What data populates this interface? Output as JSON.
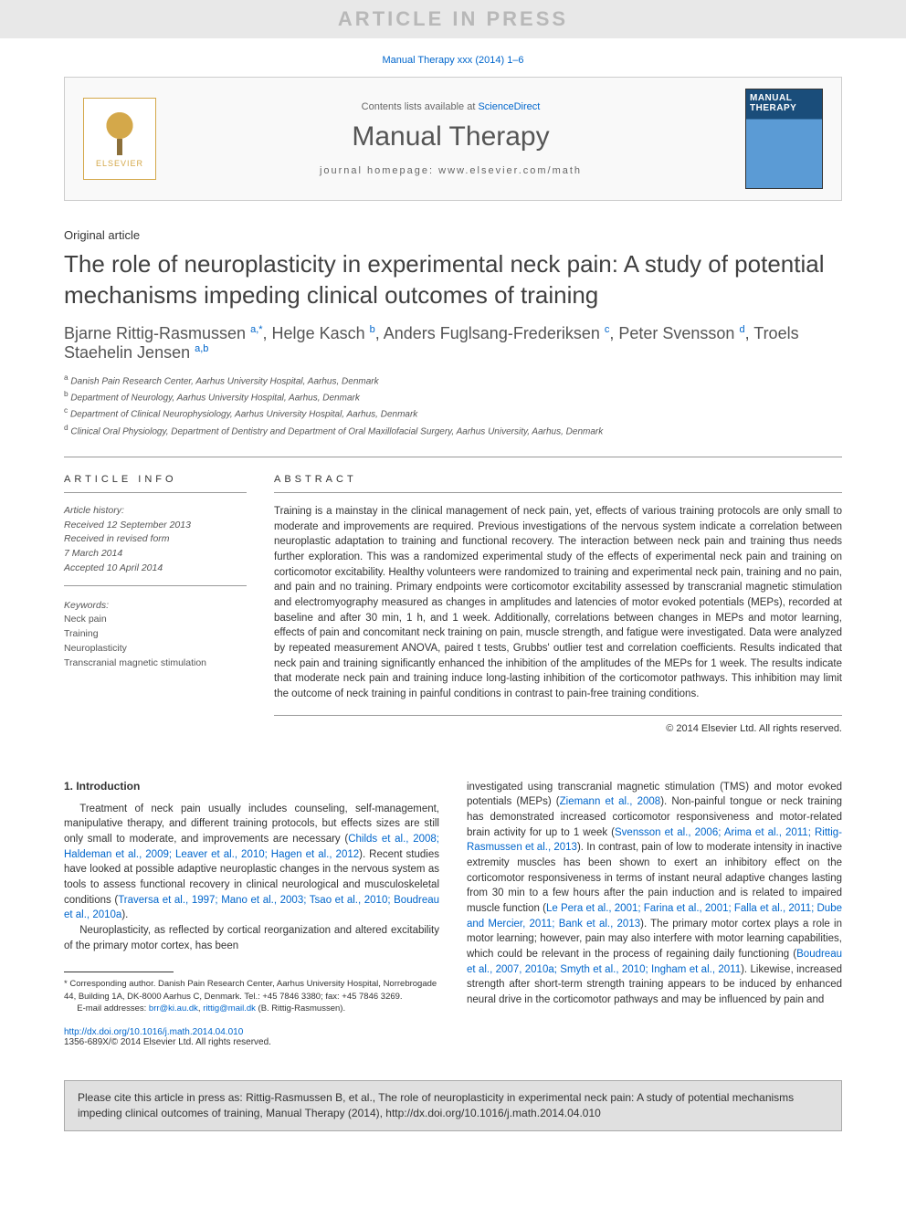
{
  "banner": "ARTICLE IN PRESS",
  "citation_header": "Manual Therapy xxx (2014) 1–6",
  "header": {
    "contents_text": "Contents lists available at ",
    "contents_link": "ScienceDirect",
    "journal_name": "Manual Therapy",
    "homepage_label": "journal homepage: ",
    "homepage_url": "www.elsevier.com/math",
    "elsevier_label": "ELSEVIER",
    "cover_title": "MANUAL THERAPY"
  },
  "article": {
    "type": "Original article",
    "title": "The role of neuroplasticity in experimental neck pain: A study of potential mechanisms impeding clinical outcomes of training",
    "authors_html": "Bjarne Rittig-Rasmussen <sup>a,</sup><sup class='sup-star'>*</sup>, Helge Kasch <sup>b</sup>, Anders Fuglsang-Frederiksen <sup>c</sup>, Peter Svensson <sup>d</sup>, Troels Staehelin Jensen <sup>a,b</sup>",
    "affiliations": [
      {
        "sup": "a",
        "text": "Danish Pain Research Center, Aarhus University Hospital, Aarhus, Denmark"
      },
      {
        "sup": "b",
        "text": "Department of Neurology, Aarhus University Hospital, Aarhus, Denmark"
      },
      {
        "sup": "c",
        "text": "Department of Clinical Neurophysiology, Aarhus University Hospital, Aarhus, Denmark"
      },
      {
        "sup": "d",
        "text": "Clinical Oral Physiology, Department of Dentistry and Department of Oral Maxillofacial Surgery, Aarhus University, Aarhus, Denmark"
      }
    ]
  },
  "info": {
    "heading": "ARTICLE INFO",
    "history_label": "Article history:",
    "history": [
      "Received 12 September 2013",
      "Received in revised form",
      "7 March 2014",
      "Accepted 10 April 2014"
    ],
    "keywords_label": "Keywords:",
    "keywords": [
      "Neck pain",
      "Training",
      "Neuroplasticity",
      "Transcranial magnetic stimulation"
    ]
  },
  "abstract": {
    "heading": "ABSTRACT",
    "text": "Training is a mainstay in the clinical management of neck pain, yet, effects of various training protocols are only small to moderate and improvements are required. Previous investigations of the nervous system indicate a correlation between neuroplastic adaptation to training and functional recovery. The interaction between neck pain and training thus needs further exploration. This was a randomized experimental study of the effects of experimental neck pain and training on corticomotor excitability. Healthy volunteers were randomized to training and experimental neck pain, training and no pain, and pain and no training. Primary endpoints were corticomotor excitability assessed by transcranial magnetic stimulation and electromyography measured as changes in amplitudes and latencies of motor evoked potentials (MEPs), recorded at baseline and after 30 min, 1 h, and 1 week. Additionally, correlations between changes in MEPs and motor learning, effects of pain and concomitant neck training on pain, muscle strength, and fatigue were investigated. Data were analyzed by repeated measurement ANOVA, paired t tests, Grubbs' outlier test and correlation coefficients. Results indicated that neck pain and training significantly enhanced the inhibition of the amplitudes of the MEPs for 1 week. The results indicate that moderate neck pain and training induce long-lasting inhibition of the corticomotor pathways. This inhibition may limit the outcome of neck training in painful conditions in contrast to pain-free training conditions.",
    "copyright": "© 2014 Elsevier Ltd. All rights reserved."
  },
  "body": {
    "section_heading": "1. Introduction",
    "para1_pre": "Treatment of neck pain usually includes counseling, self-management, manipulative therapy, and different training protocols, but effects sizes are still only small to moderate, and improvements are necessary (",
    "para1_ref1": "Childs et al., 2008; Haldeman et al., 2009; Leaver et al., 2010; Hagen et al., 2012",
    "para1_mid": "). Recent studies have looked at possible adaptive neuroplastic changes in the nervous system as tools to assess functional recovery in clinical neurological and musculoskeletal conditions (",
    "para1_ref2": "Traversa et al., 1997; Mano et al., 2003; Tsao et al., 2010; Boudreau et al., 2010a",
    "para1_end": ").",
    "para2": "Neuroplasticity, as reflected by cortical reorganization and altered excitability of the primary motor cortex, has been",
    "col2_pre": "investigated using transcranial magnetic stimulation (TMS) and motor evoked potentials (MEPs) (",
    "col2_ref1": "Ziemann et al., 2008",
    "col2_mid1": "). Non-painful tongue or neck training has demonstrated increased corticomotor responsiveness and motor-related brain activity for up to 1 week (",
    "col2_ref2": "Svensson et al., 2006; Arima et al., 2011; Rittig-Rasmussen et al., 2013",
    "col2_mid2": "). In contrast, pain of low to moderate intensity in inactive extremity muscles has been shown to exert an inhibitory effect on the corticomotor responsiveness in terms of instant neural adaptive changes lasting from 30 min to a few hours after the pain induction and is related to impaired muscle function (",
    "col2_ref3": "Le Pera et al., 2001; Farina et al., 2001; Falla et al., 2011; Dube and Mercier, 2011; Bank et al., 2013",
    "col2_mid3": "). The primary motor cortex plays a role in motor learning; however, pain may also interfere with motor learning capabilities, which could be relevant in the process of regaining daily functioning (",
    "col2_ref4": "Boudreau et al., 2007, 2010a; Smyth et al., 2010; Ingham et al., 2011",
    "col2_end": "). Likewise, increased strength after short-term strength training appears to be induced by enhanced neural drive in the corticomotor pathways and may be influenced by pain and"
  },
  "footnote": {
    "corresponding": "* Corresponding author. Danish Pain Research Center, Aarhus University Hospital, Norrebrogade 44, Building 1A, DK-8000 Aarhus C, Denmark. Tel.: +45 7846 3380; fax: +45 7846 3269.",
    "email_label": "E-mail addresses: ",
    "email1": "brr@ki.au.dk",
    "email_sep": ", ",
    "email2": "rittig@mail.dk",
    "email_suffix": " (B. Rittig-Rasmussen).",
    "doi": "http://dx.doi.org/10.1016/j.math.2014.04.010",
    "issn": "1356-689X/© 2014 Elsevier Ltd. All rights reserved."
  },
  "cite_box": "Please cite this article in press as: Rittig-Rasmussen B, et al., The role of neuroplasticity in experimental neck pain: A study of potential mechanisms impeding clinical outcomes of training, Manual Therapy (2014), http://dx.doi.org/10.1016/j.math.2014.04.010",
  "colors": {
    "link": "#0066cc",
    "banner_bg": "#e8e8e8",
    "banner_fg": "#b8b8b8",
    "border": "#999999",
    "text": "#333333"
  }
}
